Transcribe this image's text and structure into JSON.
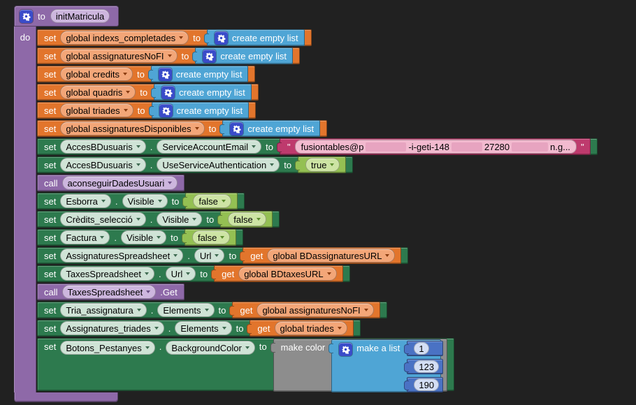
{
  "procedure": {
    "keyword": "to",
    "name": "initMatricula",
    "body_label": "do"
  },
  "icons": {
    "gear": "gear-icon (mutator)",
    "dropdown_arrow": "chevron-down-icon"
  },
  "colors": {
    "workspace_bg": "#212121",
    "variables": "#e2752c",
    "variables_field": "#f3a678",
    "lists": "#4fa5d5",
    "component": "#2d7a4e",
    "component_field": "#cfe3d6",
    "logic": "#94c053",
    "logic_field": "#cde4a4",
    "text": "#be3a6d",
    "text_field": "#f2bacf",
    "procedure": "#8e69a8",
    "procedure_field": "#cdb6de",
    "math": "#4a72c4",
    "math_field": "#d3def5",
    "color_block": "#8d8d8d",
    "gear_badge": "#3a4cc9"
  },
  "rows": [
    {
      "name": "set-variable-block",
      "cat": "variables",
      "tokens": [
        {
          "k": "lbl",
          "t": "set"
        },
        {
          "k": "fld",
          "t": "global indexs_completades",
          "dd": true,
          "name": "variable-dropdown"
        },
        {
          "k": "lbl",
          "t": "to"
        },
        {
          "k": "blk",
          "cat": "lists",
          "name": "create-empty-list-block",
          "tokens": [
            {
              "k": "gear"
            },
            {
              "k": "lbl",
              "t": "create empty list"
            }
          ]
        }
      ]
    },
    {
      "name": "set-variable-block",
      "cat": "variables",
      "tokens": [
        {
          "k": "lbl",
          "t": "set"
        },
        {
          "k": "fld",
          "t": "global assignaturesNoFI",
          "dd": true,
          "name": "variable-dropdown"
        },
        {
          "k": "lbl",
          "t": "to"
        },
        {
          "k": "blk",
          "cat": "lists",
          "name": "create-empty-list-block",
          "tokens": [
            {
              "k": "gear"
            },
            {
              "k": "lbl",
              "t": "create empty list"
            }
          ]
        }
      ]
    },
    {
      "name": "set-variable-block",
      "cat": "variables",
      "tokens": [
        {
          "k": "lbl",
          "t": "set"
        },
        {
          "k": "fld",
          "t": "global credits",
          "dd": true,
          "name": "variable-dropdown"
        },
        {
          "k": "lbl",
          "t": "to"
        },
        {
          "k": "blk",
          "cat": "lists",
          "name": "create-empty-list-block",
          "tokens": [
            {
              "k": "gear"
            },
            {
              "k": "lbl",
              "t": "create empty list"
            }
          ]
        }
      ]
    },
    {
      "name": "set-variable-block",
      "cat": "variables",
      "tokens": [
        {
          "k": "lbl",
          "t": "set"
        },
        {
          "k": "fld",
          "t": "global quadris",
          "dd": true,
          "name": "variable-dropdown"
        },
        {
          "k": "lbl",
          "t": "to"
        },
        {
          "k": "blk",
          "cat": "lists",
          "name": "create-empty-list-block",
          "tokens": [
            {
              "k": "gear"
            },
            {
              "k": "lbl",
              "t": "create empty list"
            }
          ]
        }
      ]
    },
    {
      "name": "set-variable-block",
      "cat": "variables",
      "tokens": [
        {
          "k": "lbl",
          "t": "set"
        },
        {
          "k": "fld",
          "t": "global triades",
          "dd": true,
          "name": "variable-dropdown"
        },
        {
          "k": "lbl",
          "t": "to"
        },
        {
          "k": "blk",
          "cat": "lists",
          "name": "create-empty-list-block",
          "tokens": [
            {
              "k": "gear"
            },
            {
              "k": "lbl",
              "t": "create empty list"
            }
          ]
        }
      ]
    },
    {
      "name": "set-variable-block",
      "cat": "variables",
      "tokens": [
        {
          "k": "lbl",
          "t": "set"
        },
        {
          "k": "fld",
          "t": "global assignaturesDisponibles",
          "dd": true,
          "name": "variable-dropdown"
        },
        {
          "k": "lbl",
          "t": "to"
        },
        {
          "k": "blk",
          "cat": "lists",
          "name": "create-empty-list-block",
          "tokens": [
            {
              "k": "gear"
            },
            {
              "k": "lbl",
              "t": "create empty list"
            }
          ]
        }
      ]
    },
    {
      "name": "set-property-block",
      "cat": "component",
      "tokens": [
        {
          "k": "lbl",
          "t": "set"
        },
        {
          "k": "fld",
          "t": "AccesBDusuaris",
          "dd": true,
          "name": "component-dropdown"
        },
        {
          "k": "lbl",
          "t": "."
        },
        {
          "k": "fld",
          "t": "ServiceAccountEmail",
          "dd": true,
          "name": "property-dropdown"
        },
        {
          "k": "lbl",
          "t": "to"
        },
        {
          "k": "blk",
          "cat": "text",
          "name": "text-string-block",
          "tokens": [
            {
              "k": "quote"
            },
            {
              "k": "tfld",
              "name": "text-field",
              "parts": [
                "fusiontables@p",
                "-i-geti-148",
                "27280",
                "n.g..."
              ]
            },
            {
              "k": "quote"
            }
          ]
        }
      ]
    },
    {
      "name": "set-property-block",
      "cat": "component",
      "tokens": [
        {
          "k": "lbl",
          "t": "set"
        },
        {
          "k": "fld",
          "t": "AccesBDusuaris",
          "dd": true,
          "name": "component-dropdown"
        },
        {
          "k": "lbl",
          "t": "."
        },
        {
          "k": "fld",
          "t": "UseServiceAuthentication",
          "dd": true,
          "name": "property-dropdown"
        },
        {
          "k": "lbl",
          "t": "to"
        },
        {
          "k": "blk",
          "cat": "logic",
          "name": "logic-true-block",
          "tokens": [
            {
              "k": "fld",
              "t": "true",
              "dd": true,
              "name": "logic-dropdown"
            }
          ]
        }
      ]
    },
    {
      "name": "call-procedure-block",
      "cat": "procedure",
      "tokens": [
        {
          "k": "lbl",
          "t": "call"
        },
        {
          "k": "fld",
          "t": "aconseguirDadesUsuari",
          "dd": true,
          "name": "procedure-dropdown"
        }
      ]
    },
    {
      "name": "set-property-block",
      "cat": "component",
      "tokens": [
        {
          "k": "lbl",
          "t": "set"
        },
        {
          "k": "fld",
          "t": "Esborra",
          "dd": true,
          "name": "component-dropdown"
        },
        {
          "k": "lbl",
          "t": "."
        },
        {
          "k": "fld",
          "t": "Visible",
          "dd": true,
          "name": "property-dropdown"
        },
        {
          "k": "lbl",
          "t": "to"
        },
        {
          "k": "blk",
          "cat": "logic",
          "name": "logic-false-block",
          "tokens": [
            {
              "k": "fld",
              "t": "false",
              "dd": true,
              "name": "logic-dropdown"
            }
          ]
        }
      ]
    },
    {
      "name": "set-property-block",
      "cat": "component",
      "tokens": [
        {
          "k": "lbl",
          "t": "set"
        },
        {
          "k": "fld",
          "t": "Crèdits_selecció",
          "dd": true,
          "name": "component-dropdown"
        },
        {
          "k": "lbl",
          "t": "."
        },
        {
          "k": "fld",
          "t": "Visible",
          "dd": true,
          "name": "property-dropdown"
        },
        {
          "k": "lbl",
          "t": "to"
        },
        {
          "k": "blk",
          "cat": "logic",
          "name": "logic-false-block",
          "tokens": [
            {
              "k": "fld",
              "t": "false",
              "dd": true,
              "name": "logic-dropdown"
            }
          ]
        }
      ]
    },
    {
      "name": "set-property-block",
      "cat": "component",
      "tokens": [
        {
          "k": "lbl",
          "t": "set"
        },
        {
          "k": "fld",
          "t": "Factura",
          "dd": true,
          "name": "component-dropdown"
        },
        {
          "k": "lbl",
          "t": "."
        },
        {
          "k": "fld",
          "t": "Visible",
          "dd": true,
          "name": "property-dropdown"
        },
        {
          "k": "lbl",
          "t": "to"
        },
        {
          "k": "blk",
          "cat": "logic",
          "name": "logic-false-block",
          "tokens": [
            {
              "k": "fld",
              "t": "false",
              "dd": true,
              "name": "logic-dropdown"
            }
          ]
        }
      ]
    },
    {
      "name": "set-property-block",
      "cat": "component",
      "tokens": [
        {
          "k": "lbl",
          "t": "set"
        },
        {
          "k": "fld",
          "t": "AssignaturesSpreadsheet",
          "dd": true,
          "name": "component-dropdown"
        },
        {
          "k": "lbl",
          "t": "."
        },
        {
          "k": "fld",
          "t": "Url",
          "dd": true,
          "name": "property-dropdown"
        },
        {
          "k": "lbl",
          "t": "to"
        },
        {
          "k": "blk",
          "cat": "variables",
          "name": "get-variable-block",
          "tokens": [
            {
              "k": "lbl",
              "t": "get"
            },
            {
              "k": "fld",
              "t": "global BDassignaturesURL",
              "dd": true,
              "name": "variable-dropdown"
            }
          ]
        }
      ]
    },
    {
      "name": "set-property-block",
      "cat": "component",
      "tokens": [
        {
          "k": "lbl",
          "t": "set"
        },
        {
          "k": "fld",
          "t": "TaxesSpreadsheet",
          "dd": true,
          "name": "component-dropdown"
        },
        {
          "k": "lbl",
          "t": "."
        },
        {
          "k": "fld",
          "t": "Url",
          "dd": true,
          "name": "property-dropdown"
        },
        {
          "k": "lbl",
          "t": "to"
        },
        {
          "k": "blk",
          "cat": "variables",
          "name": "get-variable-block",
          "tokens": [
            {
              "k": "lbl",
              "t": "get"
            },
            {
              "k": "fld",
              "t": "global BDtaxesURL",
              "dd": true,
              "name": "variable-dropdown"
            }
          ]
        }
      ]
    },
    {
      "name": "call-method-block",
      "cat": "procedure",
      "tokens": [
        {
          "k": "lbl",
          "t": "call"
        },
        {
          "k": "fld",
          "t": "TaxesSpreadsheet",
          "dd": true,
          "name": "component-dropdown"
        },
        {
          "k": "lbl",
          "t": ".Get"
        }
      ]
    },
    {
      "name": "set-property-block",
      "cat": "component",
      "tokens": [
        {
          "k": "lbl",
          "t": "set"
        },
        {
          "k": "fld",
          "t": "Tria_assignatura",
          "dd": true,
          "name": "component-dropdown"
        },
        {
          "k": "lbl",
          "t": "."
        },
        {
          "k": "fld",
          "t": "Elements",
          "dd": true,
          "name": "property-dropdown"
        },
        {
          "k": "lbl",
          "t": "to"
        },
        {
          "k": "blk",
          "cat": "variables",
          "name": "get-variable-block",
          "tokens": [
            {
              "k": "lbl",
              "t": "get"
            },
            {
              "k": "fld",
              "t": "global assignaturesNoFI",
              "dd": true,
              "name": "variable-dropdown"
            }
          ]
        }
      ]
    },
    {
      "name": "set-property-block",
      "cat": "component",
      "tokens": [
        {
          "k": "lbl",
          "t": "set"
        },
        {
          "k": "fld",
          "t": "Assignatures_triades",
          "dd": true,
          "name": "component-dropdown"
        },
        {
          "k": "lbl",
          "t": "."
        },
        {
          "k": "fld",
          "t": "Elements",
          "dd": true,
          "name": "property-dropdown"
        },
        {
          "k": "lbl",
          "t": "to"
        },
        {
          "k": "blk",
          "cat": "variables",
          "name": "get-variable-block",
          "tokens": [
            {
              "k": "lbl",
              "t": "get"
            },
            {
              "k": "fld",
              "t": "global triades",
              "dd": true,
              "name": "variable-dropdown"
            }
          ]
        }
      ]
    },
    {
      "name": "set-property-block",
      "cat": "component",
      "tall": true,
      "tokens": [
        {
          "k": "lbl",
          "t": "set"
        },
        {
          "k": "fld",
          "t": "Botons_Pestanyes",
          "dd": true,
          "name": "component-dropdown"
        },
        {
          "k": "lbl",
          "t": "."
        },
        {
          "k": "fld",
          "t": "BackgroundColor",
          "dd": true,
          "name": "property-dropdown"
        },
        {
          "k": "lbl",
          "t": "to"
        },
        {
          "k": "blk",
          "cat": "color",
          "tall": true,
          "name": "make-color-block",
          "tokens": [
            {
              "k": "lbl",
              "t": "make color"
            },
            {
              "k": "blk",
              "cat": "lists",
              "tall": true,
              "name": "make-a-list-block",
              "tokens": [
                {
                  "k": "gear"
                },
                {
                  "k": "lbl",
                  "t": "make a list"
                },
                {
                  "k": "numcol",
                  "name": "color-component-numbers",
                  "values": [
                    "1",
                    "123",
                    "190"
                  ]
                }
              ]
            }
          ]
        }
      ]
    }
  ]
}
